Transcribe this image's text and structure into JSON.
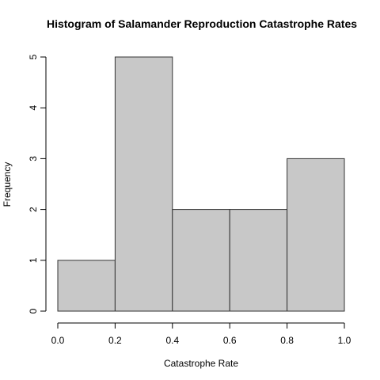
{
  "chart_data": {
    "type": "bar",
    "title": "Histogram of Salamander Reproduction Catastrophe Rates",
    "xlabel": "Catastrophe Rate",
    "ylabel": "Frequency",
    "bins": [
      {
        "start": 0.0,
        "end": 0.2,
        "count": 1
      },
      {
        "start": 0.2,
        "end": 0.4,
        "count": 5
      },
      {
        "start": 0.4,
        "end": 0.6,
        "count": 2
      },
      {
        "start": 0.6,
        "end": 0.8,
        "count": 2
      },
      {
        "start": 0.8,
        "end": 1.0,
        "count": 3
      }
    ],
    "xlim": [
      0,
      1
    ],
    "ylim": [
      0,
      5
    ],
    "xticks": [
      {
        "value": 0.0,
        "label": "0.0"
      },
      {
        "value": 0.2,
        "label": "0.2"
      },
      {
        "value": 0.4,
        "label": "0.4"
      },
      {
        "value": 0.6,
        "label": "0.6"
      },
      {
        "value": 0.8,
        "label": "0.8"
      },
      {
        "value": 1.0,
        "label": "1.0"
      }
    ],
    "yticks": [
      {
        "value": 0,
        "label": "0"
      },
      {
        "value": 1,
        "label": "1"
      },
      {
        "value": 2,
        "label": "2"
      },
      {
        "value": 3,
        "label": "3"
      },
      {
        "value": 4,
        "label": "4"
      },
      {
        "value": 5,
        "label": "5"
      }
    ],
    "bar_color": "#c8c8c8",
    "bar_edge_color": "#333333",
    "grid": false
  }
}
